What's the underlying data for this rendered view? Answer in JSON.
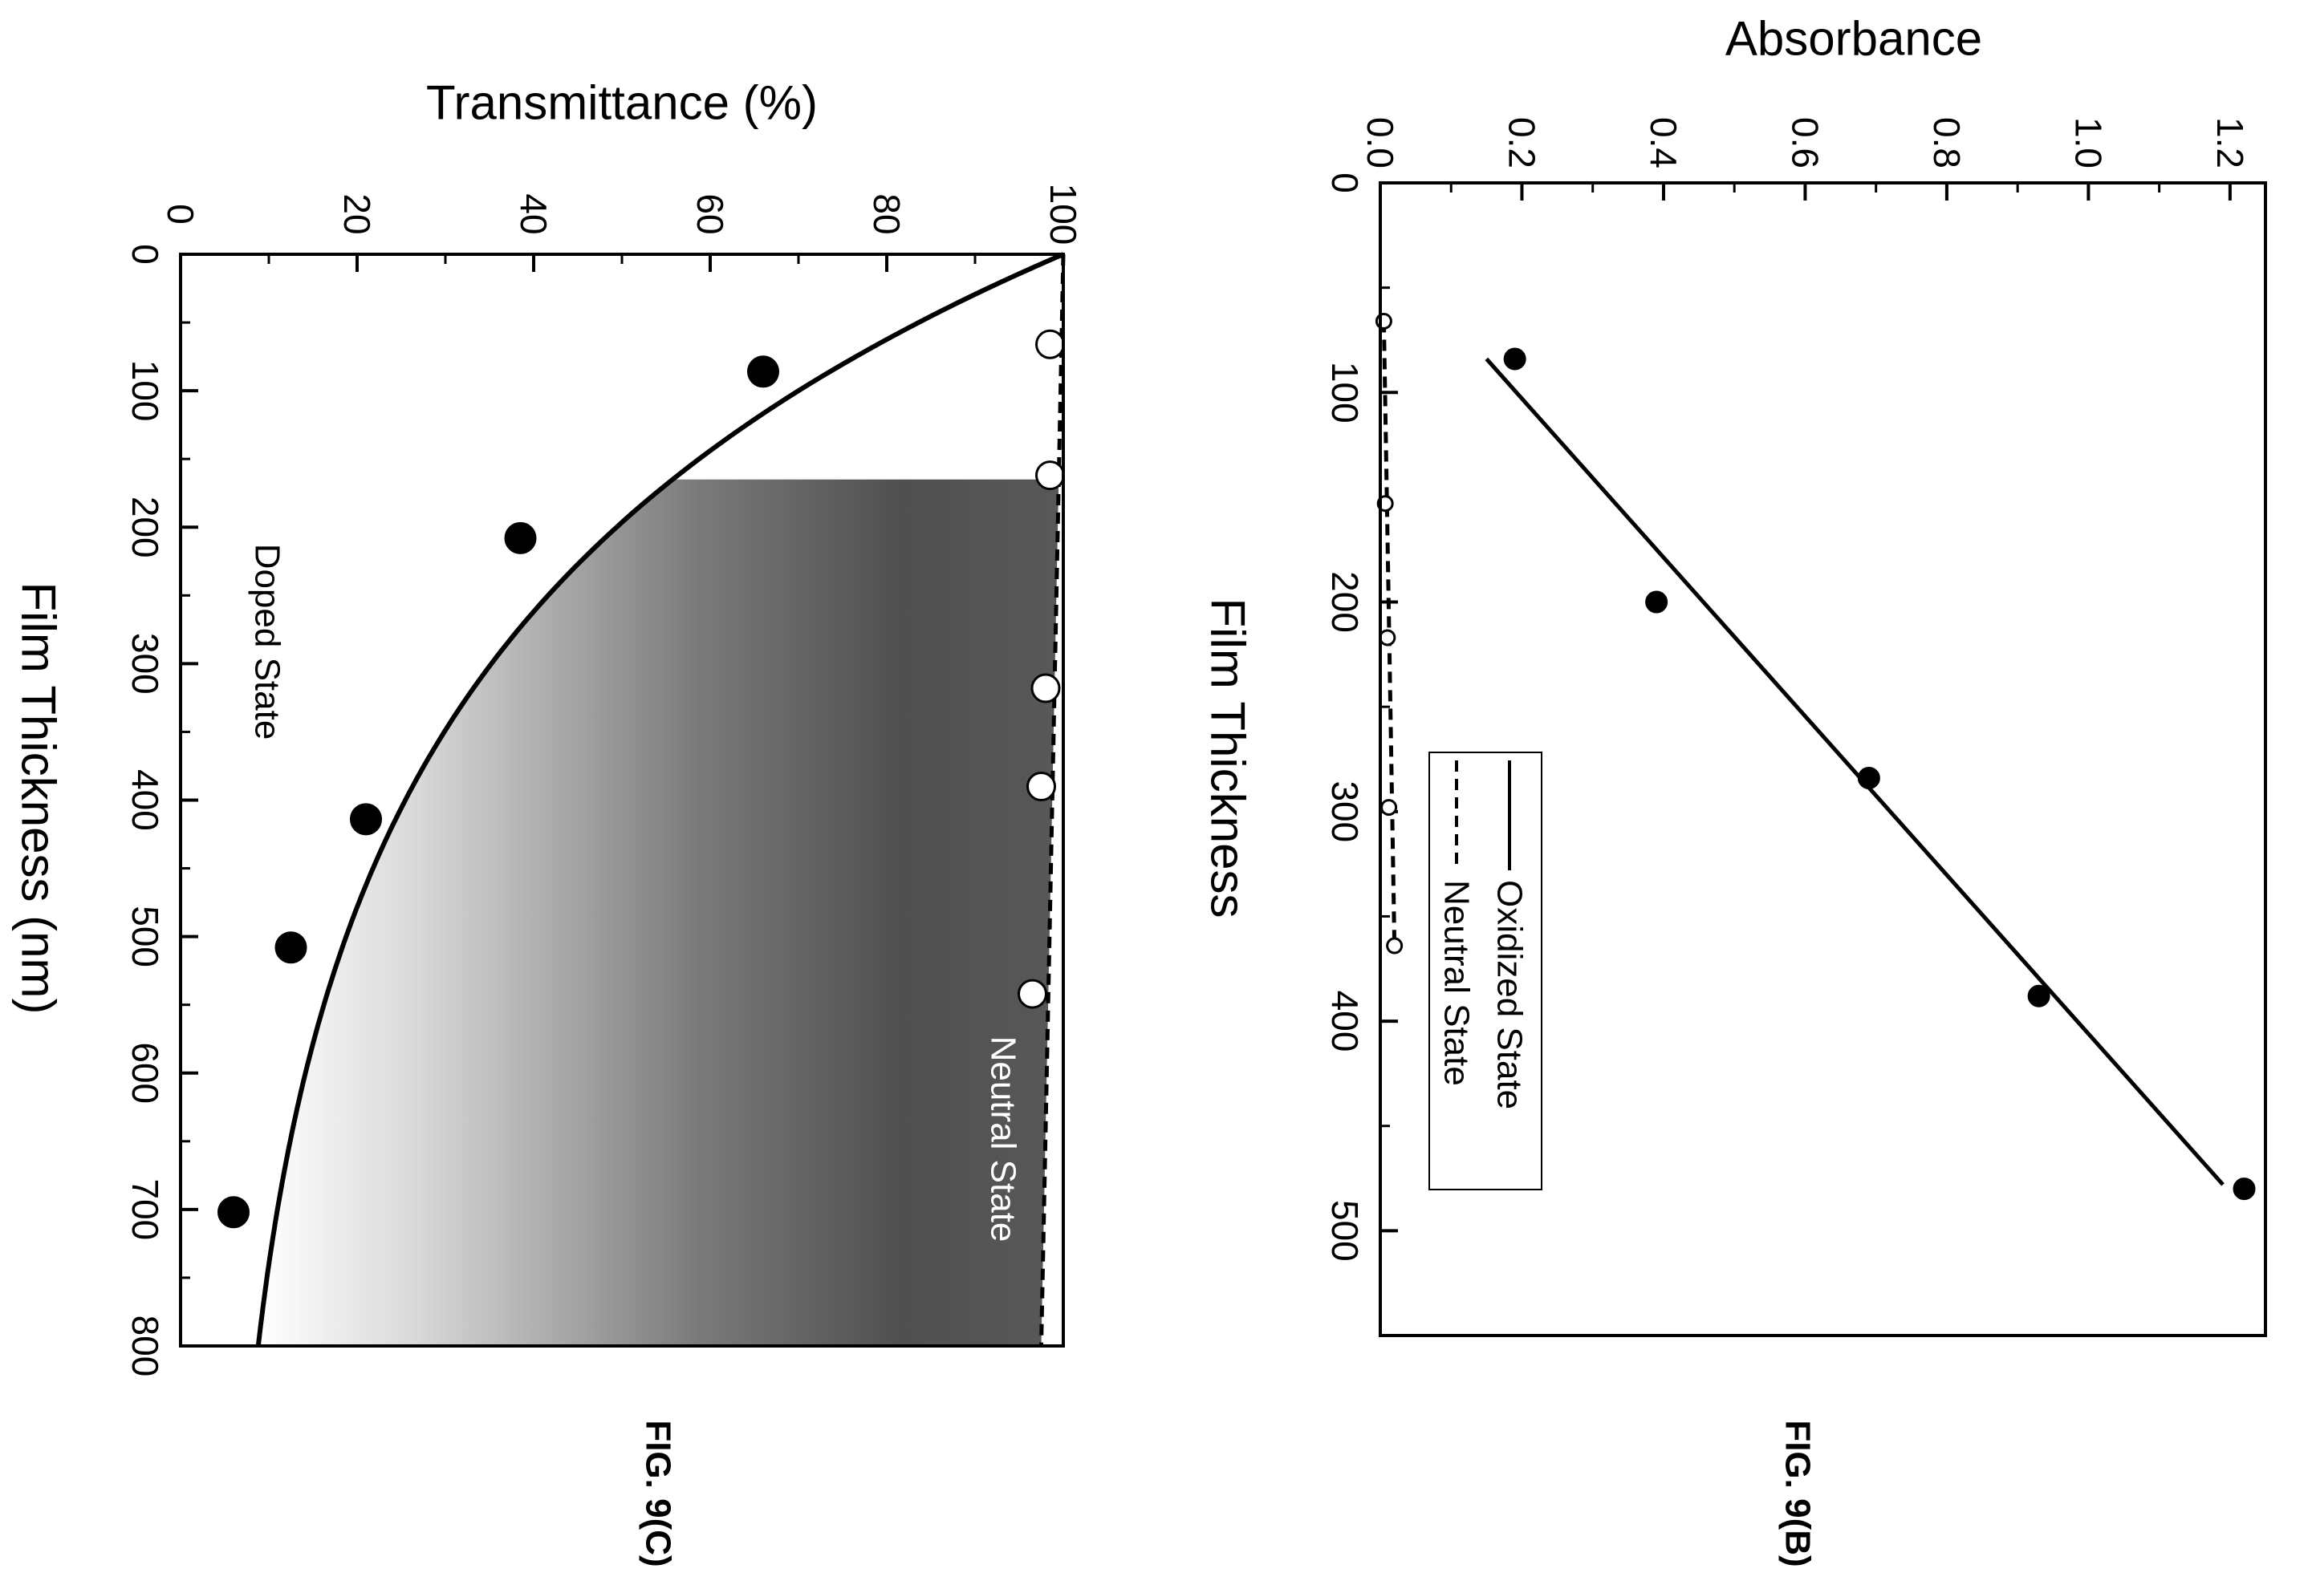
{
  "chart_data": [
    {
      "figure_label": "FIG. 9(B)",
      "type": "scatter",
      "xlabel": "Film Thickness",
      "ylabel": "Absorbance",
      "xlim": [
        0,
        550
      ],
      "ylim": [
        0.0,
        1.25
      ],
      "x_ticks": [
        "0",
        "100",
        "200",
        "300",
        "400",
        "500"
      ],
      "y_ticks": [
        "0.0",
        "0.2",
        "0.4",
        "0.6",
        "0.8",
        "1.0",
        "1.2"
      ],
      "legend": {
        "placement": "bottom-left",
        "entries": [
          "Oxidized State",
          "Neutral State"
        ]
      },
      "series": [
        {
          "name": "Oxidized State",
          "marker": "filled",
          "x": [
            84,
            200,
            284,
            388,
            480
          ],
          "y": [
            0.19,
            0.39,
            0.69,
            0.93,
            1.22
          ],
          "fit": {
            "style": "solid",
            "x": [
              84,
              478
            ],
            "y": [
              0.15,
              1.19
            ]
          }
        },
        {
          "name": "Neutral State",
          "marker": "open",
          "x": [
            66,
            153,
            217,
            298,
            364
          ],
          "y": [
            0.005,
            0.007,
            0.01,
            0.012,
            0.02
          ],
          "fit": {
            "style": "dashed",
            "x": [
              66,
              364
            ],
            "y": [
              0.005,
              0.02
            ]
          }
        }
      ]
    },
    {
      "figure_label": "FIG. 9(C)",
      "type": "scatter",
      "xlabel": "Film Thickness (nm)",
      "ylabel": "Transmittance (%)",
      "xlim": [
        0,
        800
      ],
      "ylim": [
        0,
        100
      ],
      "x_ticks": [
        "0",
        "100",
        "200",
        "300",
        "400",
        "500",
        "600",
        "700",
        "800"
      ],
      "y_ticks": [
        "0",
        "20",
        "40",
        "60",
        "80",
        "100"
      ],
      "annotations": [
        "Doped State",
        "Neutral State"
      ],
      "series": [
        {
          "name": "Doped State",
          "marker": "filled",
          "x": [
            86,
            208,
            414,
            508,
            702
          ],
          "y": [
            66,
            38.5,
            21,
            12.5,
            6
          ],
          "fit": {
            "style": "solid",
            "model": "exponential",
            "y0": 100,
            "decay_length_nm": 267,
            "offset": 4
          }
        },
        {
          "name": "Neutral State",
          "marker": "open",
          "x": [
            66,
            162,
            318,
            390,
            542
          ],
          "y": [
            98.5,
            98.5,
            98,
            97.5,
            96.5
          ],
          "fit": {
            "style": "dashed",
            "x": [
              0,
              800
            ],
            "y": [
              100,
              97.5
            ]
          }
        }
      ]
    }
  ]
}
